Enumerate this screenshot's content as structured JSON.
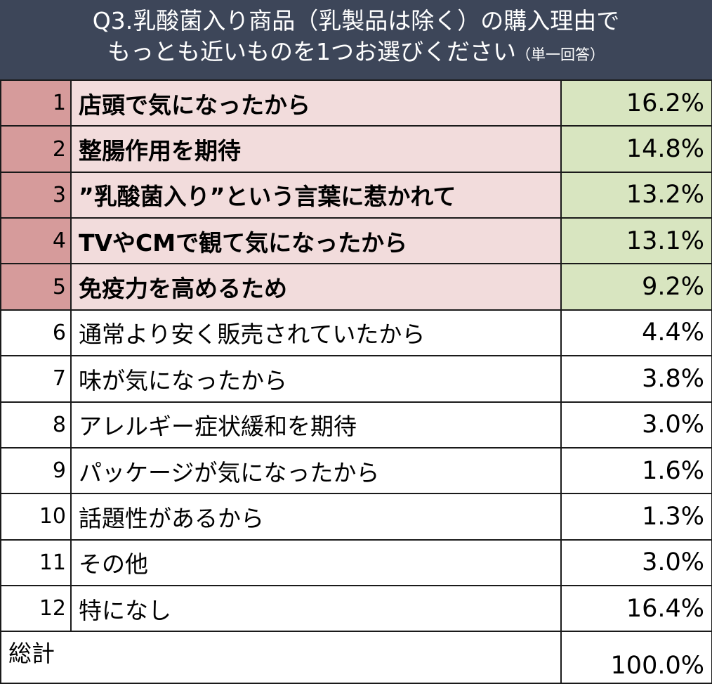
{
  "chart_data": {
    "type": "table",
    "title_line1": "Q3.乳酸菌入り商品（乳製品は除く）の購入理由で",
    "title_line2": "もっとも近いものを1つお選びください",
    "title_note": "（単一回答）",
    "highlight_color_rank": "#d69b9b",
    "highlight_color_reason": "#f2dcdc",
    "highlight_color_pct": "#d8e5c0",
    "header_color": "#3d4659",
    "rows": [
      {
        "rank": "1",
        "reason": "店頭で気になったから",
        "value": "16.2%"
      },
      {
        "rank": "2",
        "reason": "整腸作用を期待",
        "value": "14.8%"
      },
      {
        "rank": "3",
        "reason": "”乳酸菌入り”という言葉に惹かれて",
        "value": "13.2%"
      },
      {
        "rank": "4",
        "reason": "TVやCMで観て気になったから",
        "value": "13.1%"
      },
      {
        "rank": "5",
        "reason": "免疫力を高めるため",
        "value": "9.2%"
      },
      {
        "rank": "6",
        "reason": "通常より安く販売されていたから",
        "value": "4.4%"
      },
      {
        "rank": "7",
        "reason": "味が気になったから",
        "value": "3.8%"
      },
      {
        "rank": "8",
        "reason": "アレルギー症状緩和を期待",
        "value": "3.0%"
      },
      {
        "rank": "9",
        "reason": "パッケージが気になったから",
        "value": "1.6%"
      },
      {
        "rank": "10",
        "reason": "話題性があるから",
        "value": "1.3%"
      },
      {
        "rank": "11",
        "reason": "その他",
        "value": "3.0%"
      },
      {
        "rank": "12",
        "reason": "特になし",
        "value": "16.4%"
      }
    ],
    "highlighted_ranks": 5,
    "total": {
      "label": "総計",
      "value": "100.0%"
    }
  }
}
